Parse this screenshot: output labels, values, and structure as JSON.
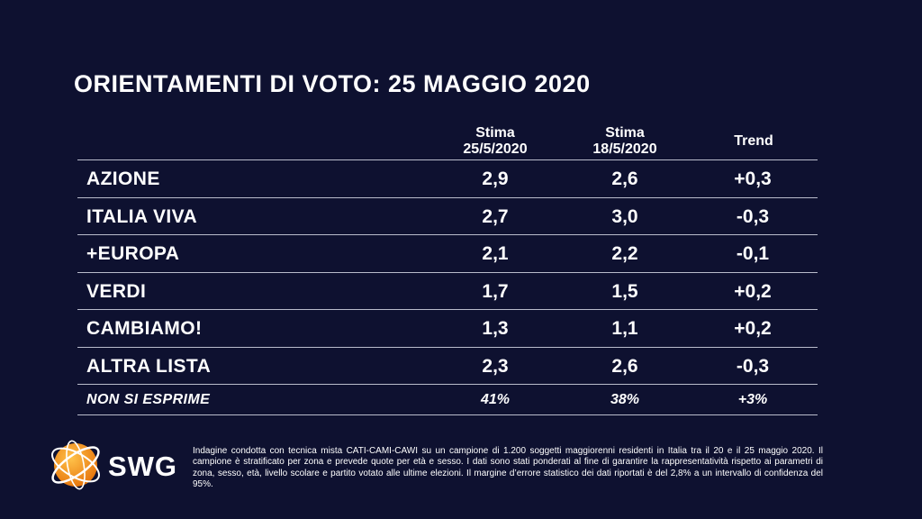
{
  "title": "ORIENTAMENTI DI VOTO: 25 MAGGIO 2020",
  "headers": {
    "col1": "Stima",
    "col1_date": "25/5/2020",
    "col2": "Stima",
    "col2_date": "18/5/2020",
    "col3": "Trend"
  },
  "rows": [
    {
      "party": "AZIONE",
      "current": "2,9",
      "previous": "2,6",
      "trend": "+0,3"
    },
    {
      "party": "ITALIA VIVA",
      "current": "2,7",
      "previous": "3,0",
      "trend": "-0,3"
    },
    {
      "party": "+EUROPA",
      "current": "2,1",
      "previous": "2,2",
      "trend": "-0,1"
    },
    {
      "party": "VERDI",
      "current": "1,7",
      "previous": "1,5",
      "trend": "+0,2"
    },
    {
      "party": "CAMBIAMO!",
      "current": "1,3",
      "previous": "1,1",
      "trend": "+0,2"
    },
    {
      "party": "ALTRA LISTA",
      "current": "2,3",
      "previous": "2,6",
      "trend": "-0,3"
    },
    {
      "party": "NON SI ESPRIME",
      "current": "41%",
      "previous": "38%",
      "trend": "+3%"
    }
  ],
  "logo": {
    "text": "SWG",
    "accent": "#f39a1e"
  },
  "note": "Indagine condotta con tecnica mista CATI-CAMI-CAWI su un campione di 1.200 soggetti maggiorenni residenti in Italia tra il 20 e il 25 maggio 2020. Il campione è stratificato per zona e prevede quote per età e sesso. I dati sono stati ponderati al fine di garantire la rappresentatività rispetto ai parametri di zona, sesso, età, livello scolare e partito votato alle ultime elezioni. Il margine d’errore statistico dei dati riportati è del 2,8% a un intervallo di confidenza del 95%.",
  "colors": {
    "background": "#0e1130",
    "text": "#ffffff",
    "divider": "#b9bccb"
  }
}
